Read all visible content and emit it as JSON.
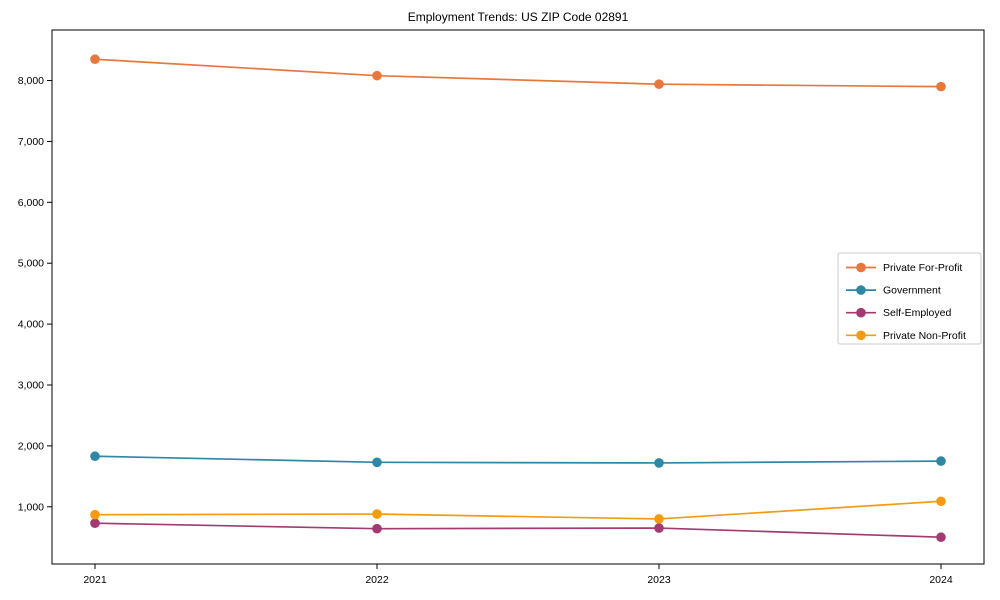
{
  "title": "Employment Trends: US ZIP Code 02891",
  "chart_data": {
    "type": "line",
    "title": "Employment Trends: US ZIP Code 02891",
    "xlabel": "",
    "ylabel": "",
    "categories": [
      "2021",
      "2022",
      "2023",
      "2024"
    ],
    "series": [
      {
        "name": "Private For-Profit",
        "color": "#e8773d",
        "values": [
          8350,
          8080,
          7940,
          7900
        ]
      },
      {
        "name": "Government",
        "color": "#2e87a5",
        "values": [
          1830,
          1730,
          1720,
          1750
        ]
      },
      {
        "name": "Self-Employed",
        "color": "#a23b72",
        "values": [
          730,
          640,
          650,
          500
        ]
      },
      {
        "name": "Private Non-Profit",
        "color": "#f39c12",
        "values": [
          870,
          880,
          800,
          1090
        ]
      }
    ],
    "ylim": [
      60,
      8830
    ],
    "yticks": [
      1000,
      2000,
      3000,
      4000,
      5000,
      6000,
      7000,
      8000
    ],
    "grid": false,
    "legend_position": "center-right",
    "axis_color": "#000000",
    "legend_border_color": "#cccccc"
  }
}
